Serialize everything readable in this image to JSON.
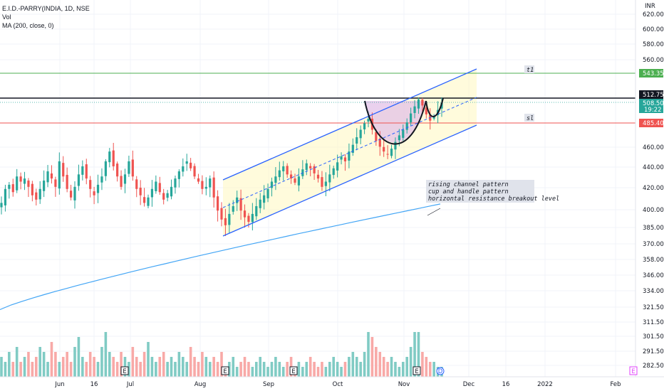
{
  "header": {
    "symbol": "E.I.D.-PARRY(INDIA, 1D, NSE",
    "volume_label": "Vol",
    "ma_label": "MA (200, close, 0)",
    "currency": "INR"
  },
  "levels": {
    "t1": {
      "label": "t1",
      "price": "543.35",
      "color": "#4caf50"
    },
    "resistance": {
      "price": "512.75",
      "color": "#131722"
    },
    "last": {
      "price": "508.50",
      "time": "19:22",
      "color": "#26a69a"
    },
    "sl": {
      "label": "sl",
      "price": "485.40",
      "color": "#ef5350"
    }
  },
  "annotation": [
    "rising channel pattern",
    "cup and handle pattern",
    "horizontal resistance breakout level"
  ],
  "event_markers": [
    "E",
    "E",
    "E",
    "D",
    "E"
  ],
  "colors": {
    "up": "#26a69a",
    "down": "#ef5350",
    "ma": "#42a5f5",
    "channel": "#2962ff",
    "cup_fill": "#e1bee7",
    "channel_fill": "#fff9c4"
  },
  "chart_data": {
    "type": "candlestick",
    "x_tick_labels": [
      "Jun",
      "16",
      "Jul",
      "Aug",
      "Sep",
      "Oct",
      "Nov",
      "Dec",
      "16",
      "2022",
      "Feb"
    ],
    "y_tick_labels": [
      "620.00",
      "600.00",
      "580.00",
      "560.00",
      "460.00",
      "440.00",
      "420.00",
      "400.00",
      "385.00",
      "370.00",
      "358.00",
      "346.00",
      "334.00",
      "321.50",
      "311.50",
      "301.50",
      "291.50",
      "282.50"
    ],
    "y_scale": "log",
    "close_series": [
      405,
      418,
      422,
      415,
      430,
      425,
      428,
      420,
      412,
      408,
      418,
      426,
      435,
      428,
      420,
      445,
      430,
      418,
      410,
      420,
      432,
      440,
      428,
      418,
      412,
      422,
      430,
      445,
      455,
      440,
      430,
      420,
      432,
      445,
      430,
      418,
      412,
      405,
      410,
      418,
      425,
      415,
      408,
      414,
      420,
      428,
      435,
      440,
      445,
      438,
      430,
      425,
      418,
      420,
      428,
      410,
      398,
      390,
      385,
      395,
      402,
      410,
      398,
      392,
      388,
      395,
      402,
      408,
      412,
      418,
      425,
      430,
      436,
      440,
      432,
      428,
      424,
      430,
      437,
      443,
      438,
      433,
      428,
      420,
      425,
      432,
      438,
      444,
      450,
      445,
      455,
      462,
      470,
      478,
      485,
      490,
      478,
      466,
      460,
      455,
      452,
      458,
      465,
      472,
      478,
      486,
      496,
      504,
      512,
      505,
      495,
      488,
      492,
      500,
      508
    ],
    "ma200": [
      318,
      404
    ],
    "volume_relative": [
      0.4,
      0.3,
      0.5,
      0.3,
      0.6,
      0.3,
      0.4,
      0.5,
      0.3,
      0.4,
      0.6,
      0.5,
      0.3,
      0.7,
      0.5,
      0.3,
      0.4,
      0.5,
      0.3,
      0.6,
      0.8,
      0.4,
      0.3,
      0.5,
      0.4,
      0.3,
      0.6,
      0.9,
      0.5,
      0.4,
      0.3,
      0.5,
      0.4,
      0.3,
      0.6,
      0.4,
      0.3,
      0.5,
      0.7,
      0.4,
      0.3,
      0.4,
      0.5,
      0.3,
      0.4,
      0.3,
      0.5,
      0.4,
      0.3,
      0.6,
      0.4,
      0.3,
      0.5,
      0.4,
      0.3,
      0.4,
      0.3,
      0.5,
      0.2,
      0.3,
      0.4,
      0.2,
      0.3,
      0.4,
      0.3,
      0.2,
      0.3,
      0.4,
      0.3,
      0.2,
      0.3,
      0.4,
      0.3,
      0.2,
      0.3,
      0.4,
      0.2,
      0.3,
      0.2,
      0.3,
      0.4,
      0.3,
      0.2,
      0.3,
      0.2,
      0.3,
      0.4,
      0.3,
      0.2,
      0.3,
      0.4,
      0.5,
      0.4,
      0.3,
      0.5,
      0.9,
      0.8,
      0.6,
      0.5,
      0.4,
      0.3,
      0.4,
      0.3,
      0.2,
      0.3,
      0.4,
      0.6,
      0.9,
      0.9,
      0.5,
      0.4,
      0.3,
      0.3,
      0.2,
      0.2
    ]
  }
}
